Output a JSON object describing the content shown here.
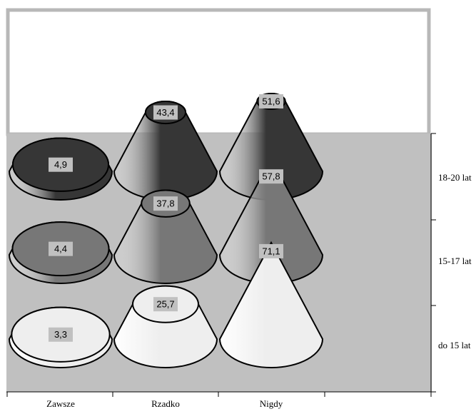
{
  "chart_data": {
    "type": "cone",
    "categories": [
      "Zawsze",
      "Rzadko",
      "Nigdy"
    ],
    "series": [
      {
        "name": "do 15 lat",
        "color": "#eeeeee",
        "values": [
          3.3,
          25.7,
          71.1
        ],
        "value_labels": [
          "3,3",
          "25,7",
          "71,1"
        ]
      },
      {
        "name": "15-17 lat",
        "color": "#777777",
        "values": [
          4.4,
          37.8,
          57.8
        ],
        "value_labels": [
          "4,4",
          "37,8",
          "57,8"
        ]
      },
      {
        "name": "18-20 lat",
        "color": "#363636",
        "values": [
          4.9,
          43.4,
          51.6
        ],
        "value_labels": [
          "4,9",
          "43,4",
          "51,6"
        ]
      }
    ]
  }
}
